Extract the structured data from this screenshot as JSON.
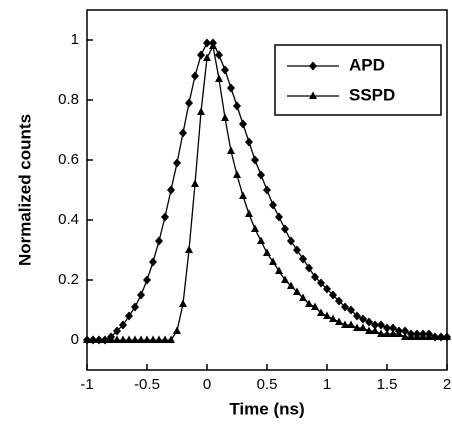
{
  "chart_data": {
    "type": "line",
    "x_label": "Time (ns)",
    "y_label": "Normalized counts",
    "x": [
      -1,
      -0.95,
      -0.9,
      -0.85,
      -0.8,
      -0.75,
      -0.7,
      -0.65,
      -0.6,
      -0.55,
      -0.5,
      -0.45,
      -0.4,
      -0.35,
      -0.3,
      -0.25,
      -0.2,
      -0.15,
      -0.1,
      -0.05,
      0,
      0.05,
      0.1,
      0.15,
      0.2,
      0.25,
      0.3,
      0.35,
      0.4,
      0.45,
      0.5,
      0.55,
      0.6,
      0.65,
      0.7,
      0.75,
      0.8,
      0.85,
      0.9,
      0.95,
      1,
      1.05,
      1.1,
      1.15,
      1.2,
      1.25,
      1.3,
      1.35,
      1.4,
      1.45,
      1.5,
      1.55,
      1.6,
      1.65,
      1.7,
      1.75,
      1.8,
      1.85,
      1.9,
      1.95,
      2
    ],
    "series": [
      {
        "name": "APD",
        "color": "#000000",
        "marker": "diamond",
        "values": [
          0,
          0,
          0,
          0,
          0.01,
          0.03,
          0.05,
          0.08,
          0.11,
          0.15,
          0.2,
          0.26,
          0.33,
          0.41,
          0.5,
          0.59,
          0.69,
          0.79,
          0.88,
          0.95,
          0.99,
          0.99,
          0.95,
          0.9,
          0.84,
          0.78,
          0.72,
          0.66,
          0.6,
          0.55,
          0.5,
          0.45,
          0.41,
          0.37,
          0.33,
          0.3,
          0.27,
          0.24,
          0.21,
          0.19,
          0.17,
          0.15,
          0.13,
          0.11,
          0.1,
          0.08,
          0.07,
          0.06,
          0.05,
          0.05,
          0.04,
          0.04,
          0.03,
          0.03,
          0.02,
          0.02,
          0.02,
          0.02,
          0.01,
          0.01,
          0.01
        ]
      },
      {
        "name": "SSPD",
        "color": "#000000",
        "marker": "triangle",
        "values": [
          0,
          0,
          0,
          0,
          0,
          0,
          0,
          0,
          0,
          0,
          0,
          0,
          0,
          0,
          0,
          0.03,
          0.12,
          0.3,
          0.52,
          0.76,
          0.94,
          0.98,
          0.87,
          0.74,
          0.63,
          0.55,
          0.48,
          0.42,
          0.37,
          0.33,
          0.29,
          0.26,
          0.23,
          0.2,
          0.18,
          0.16,
          0.14,
          0.12,
          0.11,
          0.09,
          0.08,
          0.07,
          0.06,
          0.05,
          0.05,
          0.04,
          0.04,
          0.03,
          0.03,
          0.02,
          0.02,
          0.02,
          0.02,
          0.01,
          0.01,
          0.01,
          0.01,
          0.01,
          0.01,
          0.01,
          0.01
        ]
      }
    ],
    "xlim": [
      -1,
      2
    ],
    "xticks": [
      -1,
      -0.5,
      0,
      0.5,
      1,
      1.5,
      2
    ],
    "ylim": [
      -0.1,
      1.1
    ],
    "yticks": [
      0,
      0.2,
      0.4,
      0.6,
      0.8,
      1
    ],
    "legend": "upper right"
  }
}
